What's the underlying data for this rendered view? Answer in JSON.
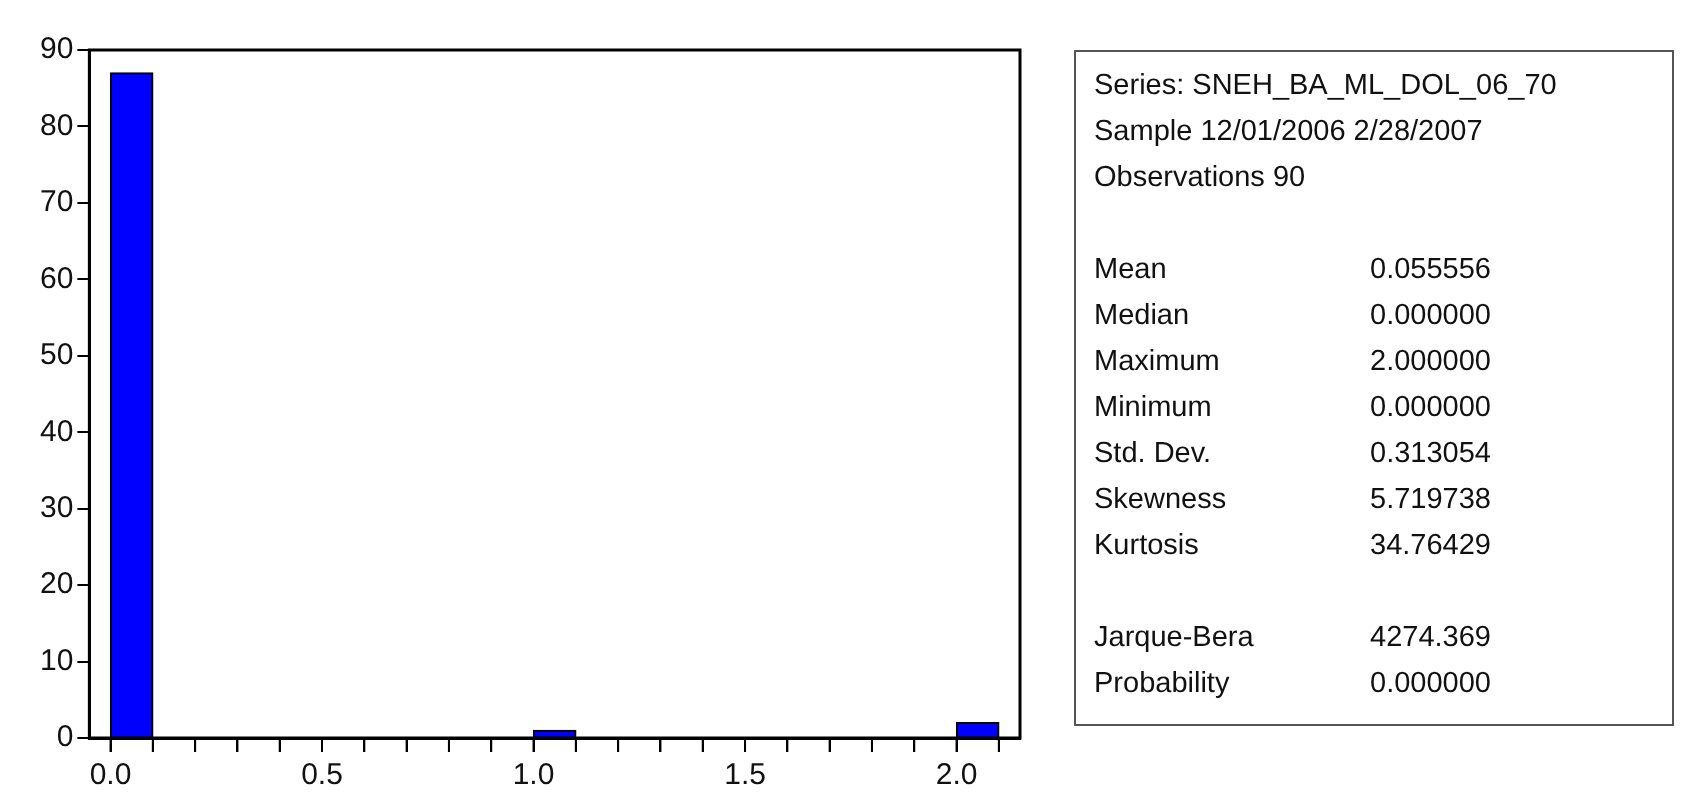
{
  "chart_data": {
    "type": "histogram",
    "bins": [
      0,
      0.1,
      0.2,
      0.3,
      0.4,
      0.5,
      0.6,
      0.7,
      0.8,
      0.9,
      1.0,
      1.1,
      1.2,
      1.3,
      1.4,
      1.5,
      1.6,
      1.7,
      1.8,
      1.9,
      2.0,
      2.1
    ],
    "values": [
      87,
      0,
      0,
      0,
      0,
      0,
      0,
      0,
      0,
      0,
      1,
      0,
      0,
      0,
      0,
      0,
      0,
      0,
      0,
      0,
      2
    ],
    "color": "#0000ff",
    "xlim": [
      -0.05,
      2.15
    ],
    "xticks": [
      {
        "value": 0,
        "label": "0.0"
      },
      {
        "value": 0.1,
        "label": null
      },
      {
        "value": 0.2,
        "label": null
      },
      {
        "value": 0.3,
        "label": null
      },
      {
        "value": 0.4,
        "label": null
      },
      {
        "value": 0.5,
        "label": "0.5"
      },
      {
        "value": 0.6,
        "label": null
      },
      {
        "value": 0.7,
        "label": null
      },
      {
        "value": 0.8,
        "label": null
      },
      {
        "value": 0.9,
        "label": null
      },
      {
        "value": 1.0,
        "label": "1.0"
      },
      {
        "value": 1.1,
        "label": null
      },
      {
        "value": 1.2,
        "label": null
      },
      {
        "value": 1.3,
        "label": null
      },
      {
        "value": 1.4,
        "label": null
      },
      {
        "value": 1.5,
        "label": "1.5"
      },
      {
        "value": 1.6,
        "label": null
      },
      {
        "value": 1.7,
        "label": null
      },
      {
        "value": 1.8,
        "label": null
      },
      {
        "value": 1.9,
        "label": null
      },
      {
        "value": 2.0,
        "label": "2.0"
      },
      {
        "value": 2.1,
        "label": null
      }
    ],
    "ylim": [
      0,
      90
    ],
    "yticks": [
      0,
      10,
      20,
      30,
      40,
      50,
      60,
      70,
      80,
      90
    ],
    "grid": false,
    "legend": false,
    "annotations": [
      "Series: SNEH_BA_ML_DOL_06_70",
      "Sample 12/01/2006 2/28/2007",
      "Observations 90",
      "Mean",
      "0.055556",
      "Median",
      "0.000000",
      "Maximum",
      "2.000000",
      "Minimum",
      "0.000000",
      "Std. Dev.",
      "0.313054",
      "Skewness",
      "5.719738",
      "Kurtosis",
      "34.76429",
      "Jarque-Bera",
      "4274.369",
      "Probability",
      "0.000000"
    ]
  }
}
